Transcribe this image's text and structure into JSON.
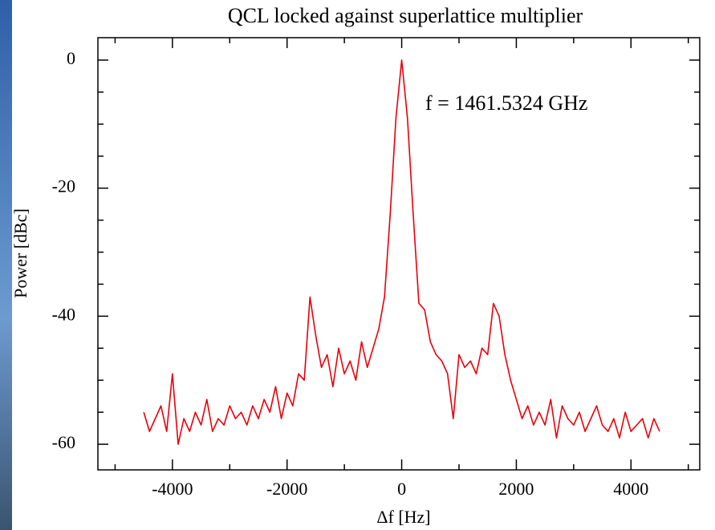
{
  "chart_data": {
    "type": "line",
    "title": "QCL locked against superlattice multiplier",
    "annotation": "f = 1461.5324 GHz",
    "xlabel": "Δf [Hz]",
    "ylabel": "Power [dBc]",
    "color": "#e8000b",
    "x": [
      -4500,
      -4400,
      -4300,
      -4200,
      -4100,
      -4000,
      -3900,
      -3800,
      -3700,
      -3600,
      -3500,
      -3400,
      -3300,
      -3200,
      -3100,
      -3000,
      -2900,
      -2800,
      -2700,
      -2600,
      -2500,
      -2400,
      -2300,
      -2200,
      -2100,
      -2000,
      -1900,
      -1800,
      -1700,
      -1600,
      -1500,
      -1400,
      -1300,
      -1200,
      -1100,
      -1000,
      -900,
      -800,
      -700,
      -600,
      -500,
      -400,
      -300,
      -200,
      -100,
      0,
      100,
      200,
      300,
      400,
      500,
      600,
      700,
      800,
      900,
      1000,
      1100,
      1200,
      1300,
      1400,
      1500,
      1600,
      1700,
      1800,
      1900,
      2000,
      2100,
      2200,
      2300,
      2400,
      2500,
      2600,
      2700,
      2800,
      2900,
      3000,
      3100,
      3200,
      3300,
      3400,
      3500,
      3600,
      3700,
      3800,
      3900,
      4000,
      4100,
      4200,
      4300,
      4400,
      4500
    ],
    "values": [
      -55,
      -58,
      -56,
      -54,
      -58,
      -49,
      -60,
      -56,
      -58,
      -55,
      -57,
      -53,
      -58,
      -56,
      -57,
      -54,
      -56,
      -55,
      -57,
      -54,
      -56,
      -53,
      -55,
      -51,
      -56,
      -52,
      -54,
      -49,
      -50,
      -37,
      -43,
      -48,
      -46,
      -51,
      -45,
      -49,
      -47,
      -50,
      -44,
      -48,
      -45,
      -42,
      -37,
      -24,
      -9,
      0,
      -9,
      -24,
      -38,
      -39,
      -44,
      -46,
      -47,
      -49,
      -56,
      -46,
      -48,
      -47,
      -49,
      -45,
      -46,
      -38,
      -40,
      -46,
      -50,
      -53,
      -56,
      -54,
      -57,
      -55,
      -57,
      -53,
      -59,
      -54,
      -56,
      -57,
      -55,
      -58,
      -56,
      -54,
      -57,
      -58,
      -56,
      -59,
      -55,
      -58,
      -57,
      -56,
      -59,
      -56,
      -58
    ],
    "xlim": [
      -5300,
      5200
    ],
    "ylim": [
      -64,
      3.5
    ],
    "xticks": [
      -4000,
      -2000,
      0,
      2000,
      4000
    ],
    "yticks": [
      0,
      -20,
      -40,
      -60
    ],
    "xminorticks": [
      -5000,
      -3000,
      -1000,
      1000,
      3000,
      5000
    ],
    "yminorticks": [
      -5,
      -10,
      -15,
      -25,
      -30,
      -35,
      -45,
      -50,
      -55
    ]
  }
}
